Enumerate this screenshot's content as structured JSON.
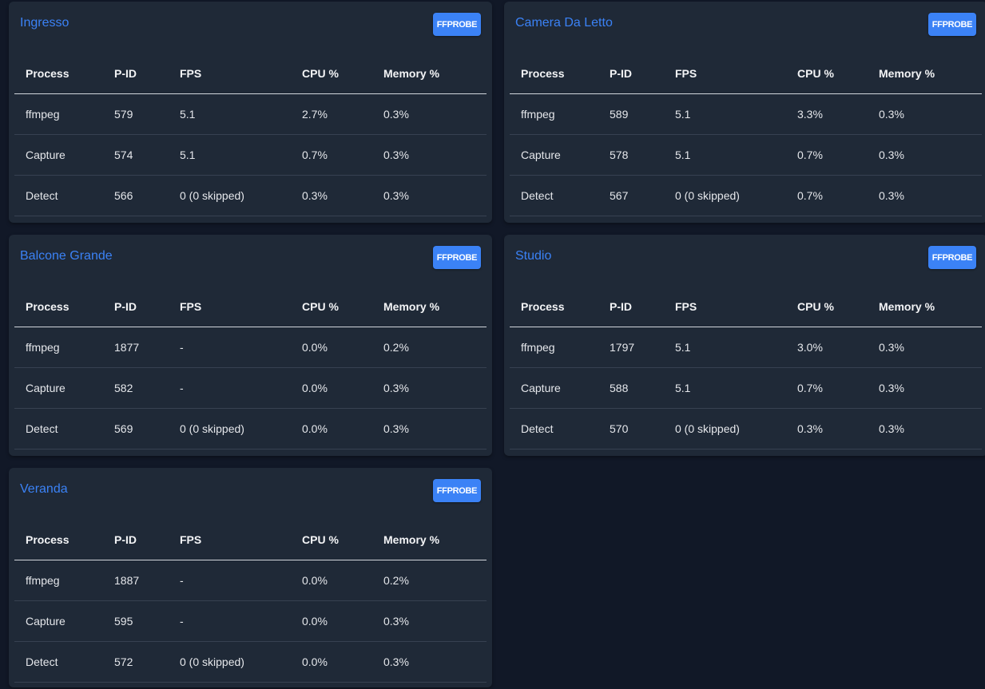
{
  "columns": [
    "Process",
    "P-ID",
    "FPS",
    "CPU %",
    "Memory %"
  ],
  "ffprobe_label": "FFPROBE",
  "cameras": [
    {
      "name": "Ingresso",
      "rows": [
        [
          "ffmpeg",
          "579",
          "5.1",
          "2.7%",
          "0.3%"
        ],
        [
          "Capture",
          "574",
          "5.1",
          "0.7%",
          "0.3%"
        ],
        [
          "Detect",
          "566",
          "0 (0 skipped)",
          "0.3%",
          "0.3%"
        ]
      ]
    },
    {
      "name": "Camera Da Letto",
      "rows": [
        [
          "ffmpeg",
          "589",
          "5.1",
          "3.3%",
          "0.3%"
        ],
        [
          "Capture",
          "578",
          "5.1",
          "0.7%",
          "0.3%"
        ],
        [
          "Detect",
          "567",
          "0 (0 skipped)",
          "0.7%",
          "0.3%"
        ]
      ]
    },
    {
      "name": "Balcone Grande",
      "rows": [
        [
          "ffmpeg",
          "1877",
          "-",
          "0.0%",
          "0.2%"
        ],
        [
          "Capture",
          "582",
          "-",
          "0.0%",
          "0.3%"
        ],
        [
          "Detect",
          "569",
          "0 (0 skipped)",
          "0.0%",
          "0.3%"
        ]
      ]
    },
    {
      "name": "Studio",
      "rows": [
        [
          "ffmpeg",
          "1797",
          "5.1",
          "3.0%",
          "0.3%"
        ],
        [
          "Capture",
          "588",
          "5.1",
          "0.7%",
          "0.3%"
        ],
        [
          "Detect",
          "570",
          "0 (0 skipped)",
          "0.3%",
          "0.3%"
        ]
      ]
    },
    {
      "name": "Veranda",
      "rows": [
        [
          "ffmpeg",
          "1887",
          "-",
          "0.0%",
          "0.2%"
        ],
        [
          "Capture",
          "595",
          "-",
          "0.0%",
          "0.3%"
        ],
        [
          "Detect",
          "572",
          "0 (0 skipped)",
          "0.0%",
          "0.3%"
        ]
      ]
    }
  ],
  "colors": {
    "background": "#111827",
    "card": "#1f2937",
    "accent": "#3b82f6",
    "text": "#e5e7eb"
  }
}
